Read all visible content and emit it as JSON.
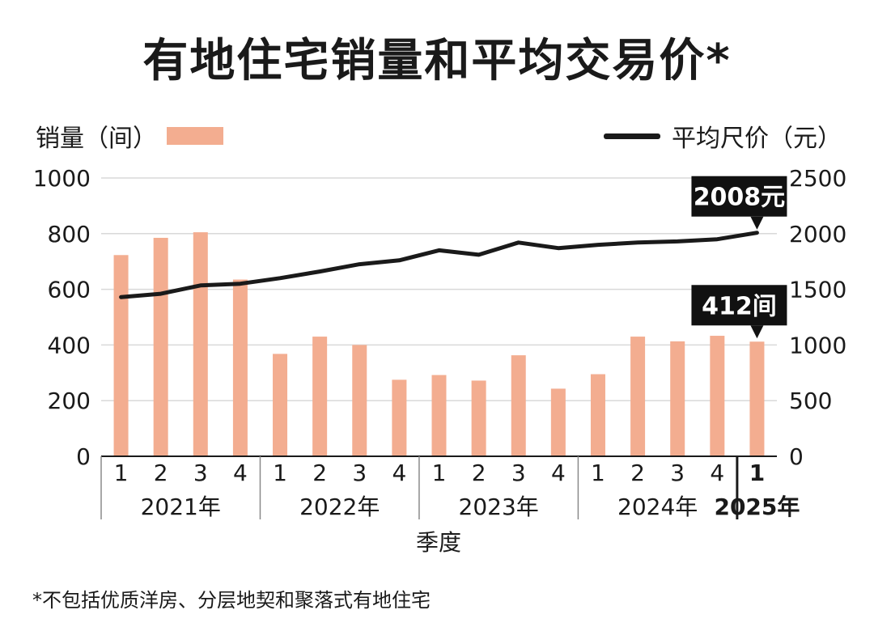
{
  "title": "有地住宅销量和平均交易价*",
  "footnote": "*不包括优质洋房、分层地契和聚落式有地住宅",
  "chart_data": {
    "type": "bar+line",
    "quarter_labels": [
      "1",
      "2",
      "3",
      "4",
      "1",
      "2",
      "3",
      "4",
      "1",
      "2",
      "3",
      "4",
      "1",
      "2",
      "3",
      "4",
      "1"
    ],
    "years": [
      {
        "label": "2021年",
        "bold": false
      },
      {
        "label": "2022年",
        "bold": false
      },
      {
        "label": "2023年",
        "bold": false
      },
      {
        "label": "2024年",
        "bold": false
      },
      {
        "label": "2025年",
        "bold": true
      }
    ],
    "xlabel": "季度",
    "left_axis": {
      "label": "销量（间）",
      "min": 0,
      "max": 1000,
      "ticks": [
        0,
        200,
        400,
        600,
        800,
        1000
      ]
    },
    "right_axis": {
      "label": "平均尺价（元）",
      "min": 0,
      "max": 2500,
      "ticks": [
        0,
        500,
        1000,
        1500,
        2000,
        2500
      ]
    },
    "series": [
      {
        "name": "销量（间）",
        "type": "bar",
        "axis": "left",
        "color": "#f3ad90",
        "values": [
          723,
          785,
          805,
          635,
          368,
          430,
          400,
          275,
          292,
          272,
          363,
          243,
          295,
          430,
          413,
          433,
          412
        ]
      },
      {
        "name": "平均尺价（元）",
        "type": "line",
        "axis": "right",
        "color": "#1a1a1a",
        "values": [
          1430,
          1460,
          1535,
          1550,
          1600,
          1660,
          1725,
          1760,
          1850,
          1810,
          1920,
          1870,
          1900,
          1920,
          1930,
          1950,
          2008
        ]
      }
    ],
    "annotations": [
      {
        "text": "2008元",
        "series": "平均尺价（元）",
        "index": 16
      },
      {
        "text": "412间",
        "series": "销量（间）",
        "index": 16
      }
    ],
    "grid": "horizontal"
  }
}
